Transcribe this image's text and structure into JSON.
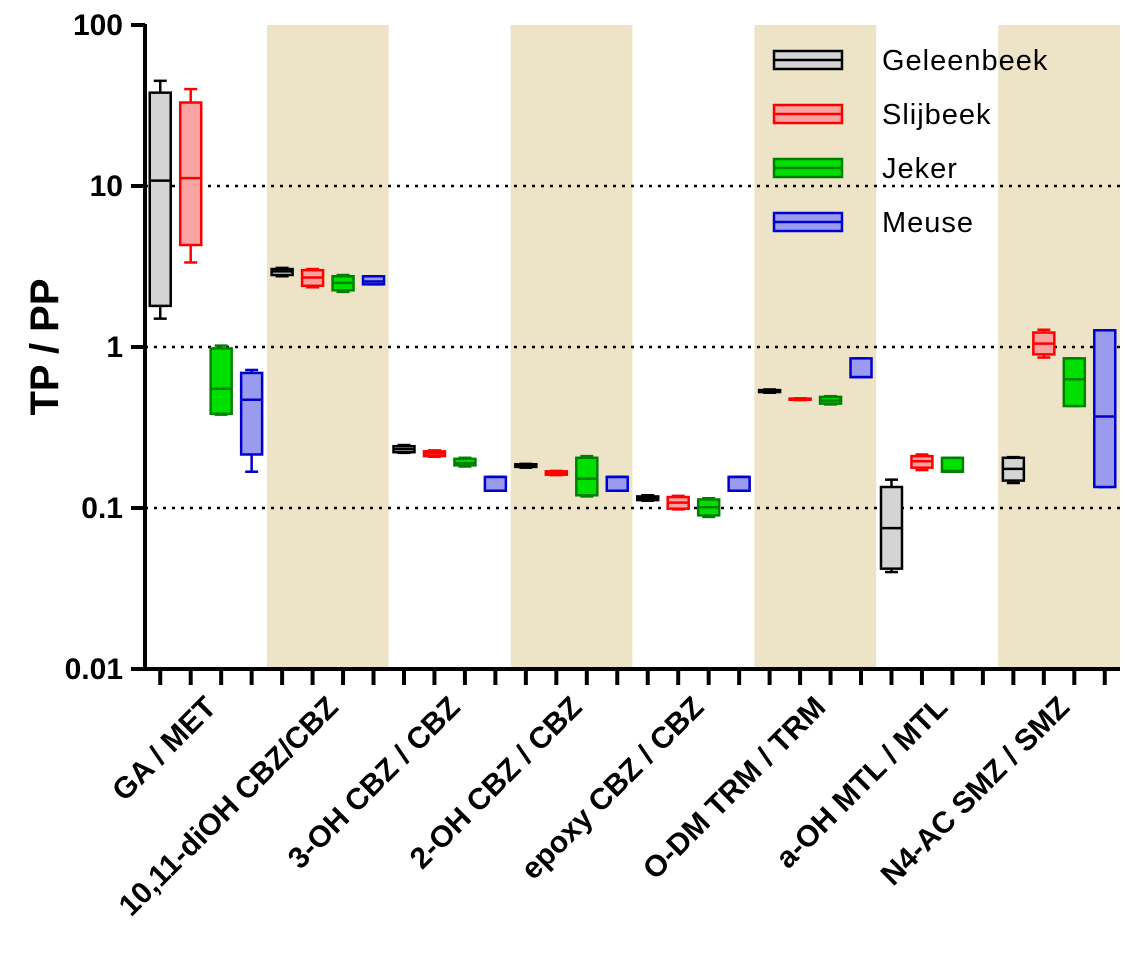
{
  "chart_data": {
    "type": "box",
    "ylabel": "TP / PP",
    "xlabel": "",
    "yscale": "log",
    "ylim": [
      0.01,
      100
    ],
    "yticks": [
      {
        "value": 0.01,
        "label": "0.01"
      },
      {
        "value": 0.1,
        "label": "0.1"
      },
      {
        "value": 1,
        "label": "1"
      },
      {
        "value": 10,
        "label": "10"
      },
      {
        "value": 100,
        "label": "100"
      }
    ],
    "grid_lines": [
      0.1,
      1,
      10
    ],
    "legend_position": "top-right",
    "categories": [
      "GA / MET",
      "10,11-diOH CBZ/CBZ",
      "3-OH CBZ / CBZ",
      "2-OH CBZ / CBZ",
      "epoxy CBZ  / CBZ",
      "O-DM TRM / TRM",
      "a-OH MTL / MTL",
      "N4-AC SMZ / SMZ"
    ],
    "shaded_categories": [
      1,
      3,
      5,
      7
    ],
    "shade_color": "#ede4c8",
    "series": [
      {
        "name": "Geleenbeek",
        "stroke": "#000000",
        "fill": "#d4d4d4",
        "boxes": [
          [
            1.5,
            1.8,
            10.8,
            38,
            45
          ],
          [
            2.75,
            2.8,
            2.95,
            3.05,
            3.1
          ],
          [
            0.22,
            0.222,
            0.232,
            0.242,
            0.246
          ],
          [
            0.178,
            0.18,
            0.184,
            0.187,
            0.188
          ],
          [
            0.111,
            0.112,
            0.115,
            0.118,
            0.12
          ],
          [
            0.52,
            0.525,
            0.53,
            0.54,
            0.545
          ],
          [
            0.04,
            0.042,
            0.075,
            0.135,
            0.15
          ],
          [
            0.143,
            0.148,
            0.175,
            0.205,
            0.207
          ]
        ]
      },
      {
        "name": "Slijbeek",
        "stroke": "#ff0000",
        "fill": "#f9a3a3",
        "boxes": [
          [
            3.35,
            4.3,
            11.2,
            33,
            40
          ],
          [
            2.35,
            2.4,
            2.7,
            3.0,
            3.05
          ],
          [
            0.208,
            0.21,
            0.218,
            0.225,
            0.228
          ],
          [
            0.16,
            0.161,
            0.165,
            0.169,
            0.17
          ],
          [
            0.098,
            0.099,
            0.108,
            0.117,
            0.119
          ],
          [
            0.468,
            0.47,
            0.475,
            0.478,
            0.48
          ],
          [
            0.172,
            0.178,
            0.195,
            0.21,
            0.215
          ],
          [
            0.86,
            0.9,
            1.05,
            1.23,
            1.28
          ]
        ]
      },
      {
        "name": "Jeker",
        "stroke": "#008000",
        "fill": "#00e000",
        "boxes": [
          [
            0.38,
            0.385,
            0.55,
            0.98,
            1.02
          ],
          [
            2.2,
            2.25,
            2.5,
            2.75,
            2.8
          ],
          [
            0.181,
            0.184,
            0.19,
            0.202,
            0.205
          ],
          [
            0.118,
            0.12,
            0.152,
            0.205,
            0.21
          ],
          [
            0.088,
            0.09,
            0.101,
            0.113,
            0.115
          ],
          [
            0.44,
            0.445,
            0.465,
            0.49,
            0.495
          ],
          [
            0.168,
            0.168,
            0.17,
            0.205,
            0.205
          ],
          [
            0.43,
            0.43,
            0.63,
            0.85,
            0.85
          ]
        ]
      },
      {
        "name": "Meuse",
        "stroke": "#0000cc",
        "fill": "#9a9aee",
        "boxes": [
          [
            0.168,
            0.215,
            0.47,
            0.69,
            0.72
          ],
          [
            2.45,
            2.45,
            2.55,
            2.75,
            2.75
          ],
          [
            0.128,
            0.128,
            0.156,
            0.156,
            0.156
          ],
          [
            0.128,
            0.128,
            0.156,
            0.156,
            0.156
          ],
          [
            0.128,
            0.128,
            0.156,
            0.156,
            0.156
          ],
          [
            0.65,
            0.65,
            0.65,
            0.85,
            0.85
          ],
          null,
          [
            0.135,
            0.135,
            0.37,
            1.27,
            1.27
          ]
        ]
      }
    ]
  }
}
